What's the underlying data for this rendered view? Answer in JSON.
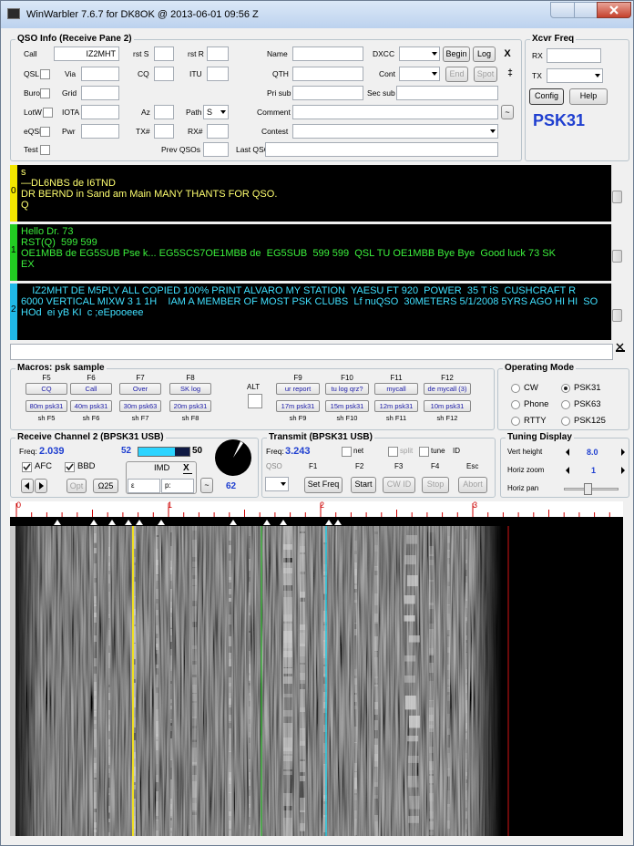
{
  "title_bar": {
    "title": "WinWarbler 7.6.7 for DK8OK @ 2013-06-01 09:56 Z"
  },
  "qso_info": {
    "title": "QSO Info (Receive Pane 2)",
    "labels": {
      "call": "Call",
      "rst_s": "rst S",
      "rst_r": "rst R",
      "name": "Name",
      "dxcc": "DXCC",
      "qsl": "QSL",
      "via": "Via",
      "cq": "CQ",
      "itu": "ITU",
      "qth": "QTH",
      "cont": "Cont",
      "buro": "Buro",
      "grid": "Grid",
      "pri_sub": "Pri sub",
      "sec_sub": "Sec sub",
      "lotw": "LotW",
      "iota": "IOTA",
      "az": "Az",
      "path": "Path",
      "comment": "Comment",
      "eqsl": "eQSL",
      "pwr": "Pwr",
      "tx_num": "TX#",
      "rx_num": "RX#",
      "contest": "Contest",
      "test": "Test",
      "prev_qsos": "Prev QSOs",
      "last_qso": "Last QSO"
    },
    "call_value": "IZ2MHT",
    "path_value": "S",
    "buttons": {
      "begin": "Begin",
      "log": "Log",
      "close": "X",
      "end": "End",
      "spot": "Spot",
      "swap": "‡",
      "tilde": "~"
    }
  },
  "xcvr_freq": {
    "title": "Xcvr Freq",
    "rx": "RX",
    "tx": "TX",
    "config": "Config",
    "help": "Help",
    "mode": "PSK31"
  },
  "receive_panes": [
    {
      "index": "0",
      "lines": [
        "s",
        "—DL6NBS de I6TND",
        "DR BERND in Sand am Main MANY THANTS FOR QSO.",
        "Q"
      ]
    },
    {
      "index": "1",
      "lines": [
        "Hello Dr. 73",
        "RST(Q)  599 599",
        "OE1MBB de EG5SUB Pse k... EG5SCS7OE1MBB de  EG5SUB  599 599  QSL TU OE1MBB Bye Bye  Good luck 73 SK",
        "EX"
      ]
    },
    {
      "index": "2",
      "lines": [
        "    IZ2MHT DE M5PLY ALL COPIED 100% PRINT ALVARO MY STATION  YAESU FT 920  POWER  35 T iS  CUSHCRAFT R",
        "6000 VERTICAL MIXW 3 1 1H    IAM A MEMBER OF MOST PSK CLUBS  Lf nuQSO  30METERS 5/1/2008 5YRS AGO HI HI  SO",
        "HOd  ei yB KI  c ;eEpooeee"
      ]
    }
  ],
  "macros": {
    "title": "Macros: psk sample",
    "alt": "ALT",
    "keys": [
      "F5",
      "F6",
      "F7",
      "F8",
      "F9",
      "F10",
      "F11",
      "F12"
    ],
    "labels": [
      "CQ",
      "Call",
      "Over",
      "SK log",
      "ur report",
      "tu log qrz?",
      "mycall",
      "de mycall (3)"
    ],
    "bands": [
      "80m psk31",
      "40m psk31",
      "30m psk63",
      "20m psk31",
      "17m psk31",
      "15m psk31",
      "12m psk31",
      "10m psk31"
    ],
    "shift_keys": [
      "sh F5",
      "sh F6",
      "sh F7",
      "sh F8",
      "sh F9",
      "sh F10",
      "sh F11",
      "sh F12"
    ]
  },
  "operating_mode": {
    "title": "Operating Mode",
    "options": [
      "CW",
      "PSK31",
      "Phone",
      "PSK63",
      "RTTY",
      "PSK125"
    ]
  },
  "receive_channel": {
    "title": "Receive Channel 2 (BPSK31 USB)",
    "freq_label": "Freq:",
    "freq": "2.039",
    "level_left": "52",
    "level_right": "50",
    "afc": "AFC",
    "bbd": "BBD",
    "opt": "Opt",
    "omega": "Ω25",
    "imd": "IMD",
    "imd_close": "X",
    "epsilon": "ε",
    "p": "p:",
    "tilde": "~",
    "value": "62"
  },
  "transmit": {
    "title": "Transmit (BPSK31 USB)",
    "freq_label": "Freq:",
    "freq": "3.243",
    "net": "net",
    "split": "split",
    "tune": "tune",
    "id": "ID",
    "qso": "QSO",
    "fkeys": [
      "F1",
      "F2",
      "F3",
      "F4",
      "Esc"
    ],
    "buttons": [
      "Set Freq",
      "Start",
      "CW ID",
      "Stop",
      "Abort"
    ]
  },
  "tuning_display": {
    "title": "Tuning Display",
    "vert_height": "Vert height",
    "vert_value": "8.0",
    "horiz_zoom": "Horiz zoom",
    "zoom_value": "1",
    "horiz_pan": "Horiz pan"
  },
  "spectrum": {
    "scale": [
      "0",
      "1",
      "2",
      "3"
    ]
  }
}
